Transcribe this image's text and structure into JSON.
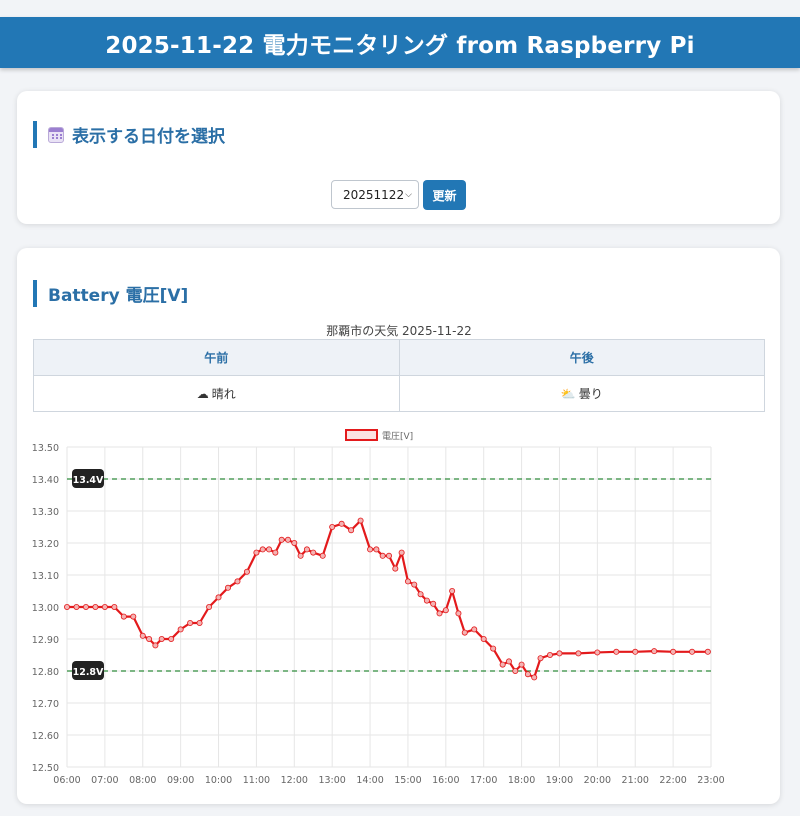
{
  "header": {
    "title": "2025-11-22 電力モニタリング from Raspberry Pi"
  },
  "date_section": {
    "title": "表示する日付を選択",
    "icon": "calendar-icon",
    "selected_date": "20251122",
    "refresh_label": "更新"
  },
  "battery_section": {
    "title": "Battery 電圧[V]",
    "weather": {
      "caption": "那覇市の天気 2025-11-22",
      "am_label": "午前",
      "pm_label": "午後",
      "am_icon": "☁",
      "am_value": "晴れ",
      "pm_icon": "⛅",
      "pm_value": "曇り"
    }
  },
  "chart_data": {
    "type": "line",
    "series": [
      {
        "name": "電圧[V]",
        "color": "#e31a1c",
        "x": [
          "06:00",
          "06:15",
          "06:30",
          "06:45",
          "07:00",
          "07:15",
          "07:30",
          "07:45",
          "08:00",
          "08:10",
          "08:20",
          "08:30",
          "08:45",
          "09:00",
          "09:15",
          "09:30",
          "09:45",
          "10:00",
          "10:15",
          "10:30",
          "10:45",
          "11:00",
          "11:10",
          "11:20",
          "11:30",
          "11:40",
          "11:50",
          "12:00",
          "12:10",
          "12:20",
          "12:30",
          "12:45",
          "13:00",
          "13:15",
          "13:30",
          "13:45",
          "14:00",
          "14:10",
          "14:20",
          "14:30",
          "14:40",
          "14:50",
          "15:00",
          "15:10",
          "15:20",
          "15:30",
          "15:40",
          "15:50",
          "16:00",
          "16:10",
          "16:20",
          "16:30",
          "16:45",
          "17:00",
          "17:15",
          "17:30",
          "17:40",
          "17:50",
          "18:00",
          "18:10",
          "18:20",
          "18:30",
          "18:45",
          "19:00",
          "19:30",
          "20:00",
          "20:30",
          "21:00",
          "21:30",
          "22:00",
          "22:30",
          "22:55"
        ],
        "values": [
          13.0,
          13.0,
          13.0,
          13.0,
          13.0,
          13.0,
          12.97,
          12.97,
          12.91,
          12.9,
          12.88,
          12.9,
          12.9,
          12.93,
          12.95,
          12.95,
          13.0,
          13.03,
          13.06,
          13.08,
          13.11,
          13.17,
          13.18,
          13.18,
          13.17,
          13.21,
          13.21,
          13.2,
          13.16,
          13.18,
          13.17,
          13.16,
          13.25,
          13.26,
          13.24,
          13.27,
          13.18,
          13.18,
          13.16,
          13.16,
          13.12,
          13.17,
          13.08,
          13.07,
          13.04,
          13.02,
          13.01,
          12.98,
          12.99,
          13.05,
          12.98,
          12.92,
          12.93,
          12.9,
          12.87,
          12.82,
          12.83,
          12.8,
          12.82,
          12.79,
          12.78,
          12.84,
          12.85,
          12.855,
          12.855,
          12.858,
          12.86,
          12.86,
          12.862,
          12.86,
          12.86,
          12.86
        ]
      }
    ],
    "xticks": [
      "06:00",
      "07:00",
      "08:00",
      "09:00",
      "10:00",
      "11:00",
      "12:00",
      "13:00",
      "14:00",
      "15:00",
      "16:00",
      "17:00",
      "18:00",
      "19:00",
      "20:00",
      "21:00",
      "22:00",
      "23:00"
    ],
    "yticks": [
      "13.50",
      "13.40",
      "13.30",
      "13.20",
      "13.10",
      "13.00",
      "12.90",
      "12.80",
      "12.70",
      "12.60",
      "12.50"
    ],
    "ylim": [
      12.5,
      13.5
    ],
    "xlim": [
      "06:00",
      "23:00"
    ],
    "thresholds": [
      {
        "value": 13.4,
        "label": "13.4V",
        "color": "#2e8b3a"
      },
      {
        "value": 12.8,
        "label": "12.8V",
        "color": "#2e8b3a"
      }
    ],
    "grid": true,
    "legend": "top"
  }
}
